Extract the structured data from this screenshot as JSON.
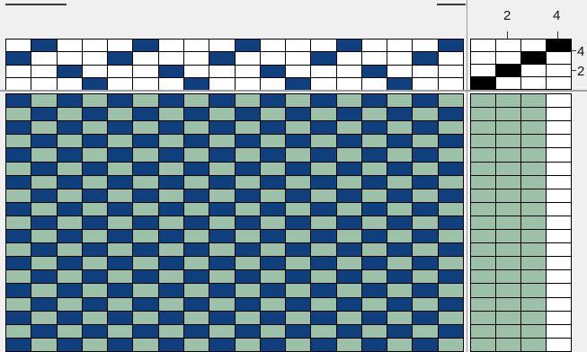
{
  "colors": {
    "blank": "#ffffff",
    "thread_mark": "#0f3f7d",
    "tieup_mark": "#000000",
    "warp": "#0f3f7d",
    "weft": "#9cc1a8",
    "grid_line": "#000000"
  },
  "tieup": {
    "column_numbers": [
      "2",
      "4"
    ],
    "row_numbers": [
      "4",
      "2"
    ],
    "rows": [
      [
        0,
        0,
        0,
        1
      ],
      [
        0,
        0,
        1,
        0
      ],
      [
        0,
        1,
        0,
        0
      ],
      [
        1,
        0,
        0,
        0
      ]
    ]
  },
  "threading": {
    "columns": 18,
    "rows": 4,
    "shafts": [
      3,
      4,
      2,
      1,
      3,
      4,
      2,
      1,
      3,
      4,
      2,
      1,
      3,
      4,
      2,
      1,
      3,
      4
    ]
  },
  "treadling": {
    "rows": 19,
    "columns": 4,
    "cell_color": "weft",
    "mark_color": "blank",
    "marks": [
      4,
      4,
      4,
      4,
      4,
      4,
      4,
      4,
      4,
      4,
      4,
      4,
      4,
      4,
      4,
      4,
      4,
      4,
      4
    ]
  },
  "drawdown": {
    "columns": 18,
    "rows": 19,
    "row_patterns": [
      [
        1,
        0,
        1,
        0,
        1,
        0,
        1,
        0,
        1,
        0,
        1,
        0,
        1,
        0,
        1,
        0,
        1,
        0
      ],
      [
        0,
        1,
        0,
        1,
        0,
        1,
        0,
        1,
        0,
        1,
        0,
        1,
        0,
        1,
        0,
        1,
        0,
        1
      ]
    ]
  }
}
